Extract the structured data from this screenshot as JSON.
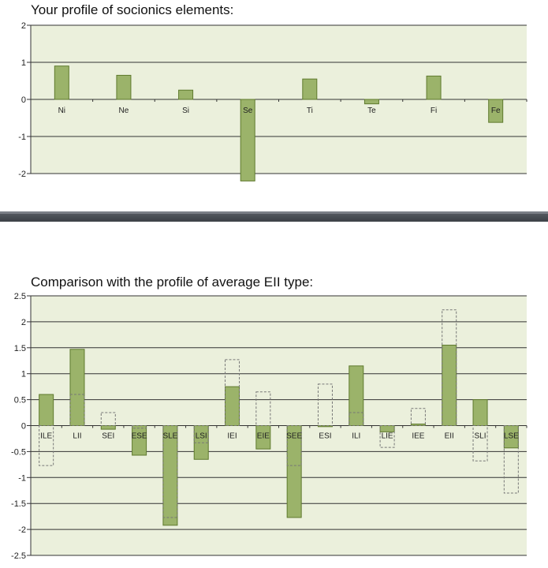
{
  "chart_data": [
    {
      "type": "bar",
      "title": "Your profile of socionics elements:",
      "categories": [
        "Ni",
        "Ne",
        "Si",
        "Se",
        "Ti",
        "Te",
        "Fi",
        "Fe"
      ],
      "values": [
        0.9,
        0.65,
        0.25,
        -2.2,
        0.55,
        -0.12,
        0.63,
        -0.62
      ],
      "ylim": [
        -2,
        2
      ],
      "yticks": [
        "2",
        "1",
        "0",
        "-1",
        "-2"
      ],
      "grid": true,
      "colors": {
        "bar": "#9bb36a",
        "bar_edge": "#5f7a2e",
        "plot_bg": "#ebf0dc",
        "grid": "#333333"
      }
    },
    {
      "type": "bar",
      "title": "Comparison with the profile of average EII type:",
      "categories": [
        "ILE",
        "LII",
        "SEI",
        "ESE",
        "SLE",
        "LSI",
        "IEI",
        "EIE",
        "SEE",
        "ESI",
        "ILI",
        "LIE",
        "IEE",
        "EII",
        "SLI",
        "LSE"
      ],
      "series": [
        {
          "values": [
            0.6,
            1.47,
            -0.07,
            -0.57,
            -1.92,
            -0.65,
            0.75,
            -0.45,
            -1.77,
            -0.02,
            1.15,
            -0.12,
            0.03,
            1.55,
            0.5,
            -0.43
          ]
        },
        {
          "values": [
            -0.77,
            0.6,
            0.25,
            -0.05,
            -1.77,
            -0.33,
            1.27,
            0.65,
            -0.77,
            0.8,
            0.25,
            -0.42,
            0.33,
            2.23,
            -0.68,
            -1.3
          ]
        }
      ],
      "ylim": [
        -2.5,
        2.5
      ],
      "yticks": [
        "2.5",
        "2",
        "1.5",
        "1",
        "0.5",
        "0",
        "-0.5",
        "-1",
        "-1.5",
        "-2",
        "-2.5"
      ],
      "grid": true,
      "colors": {
        "bar": "#9bb36a",
        "bar_edge": "#5f7a2e",
        "dashed": "#777777",
        "plot_bg": "#ebf0dc",
        "grid": "#333333"
      }
    }
  ]
}
